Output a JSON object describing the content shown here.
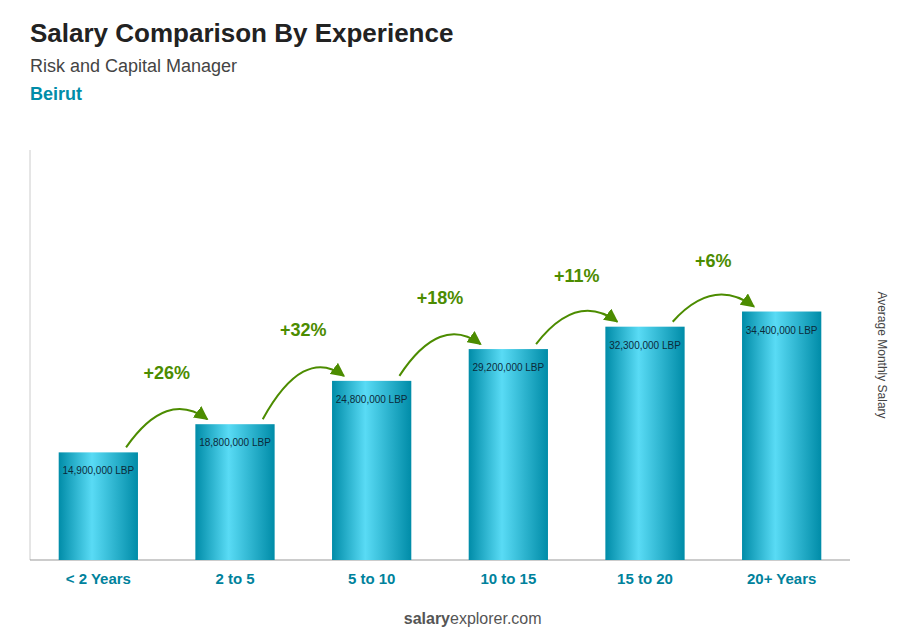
{
  "chart_data": {
    "type": "bar",
    "title": "Salary Comparison By Experience",
    "subtitle": "Risk and Capital Manager",
    "y_label": "Average Monthly Salary",
    "categories": [
      "< 2 Years",
      "2 to 5",
      "5 to 10",
      "10 to 15",
      "15 to 20",
      "20+ Years"
    ],
    "values": [
      14900000,
      18800000,
      24800000,
      29200000,
      32300000,
      34400000
    ],
    "value_labels": [
      "14,900,000 LBP",
      "18,800,000 LBP",
      "24,800,000 LBP",
      "29,200,000 LBP",
      "32,300,000 LBP",
      "34,400,000 LBP"
    ],
    "data_labels": true,
    "color": "#00c8f0",
    "ylim": [
      0,
      56760000
    ],
    "tick_labels": "x",
    "grid": false,
    "annotations": {
      "city": "Beirut",
      "changes": [
        "+26%",
        "+32%",
        "+18%",
        "+11%",
        "+6%"
      ],
      "source": [
        "salary",
        "explorer.com"
      ]
    }
  }
}
